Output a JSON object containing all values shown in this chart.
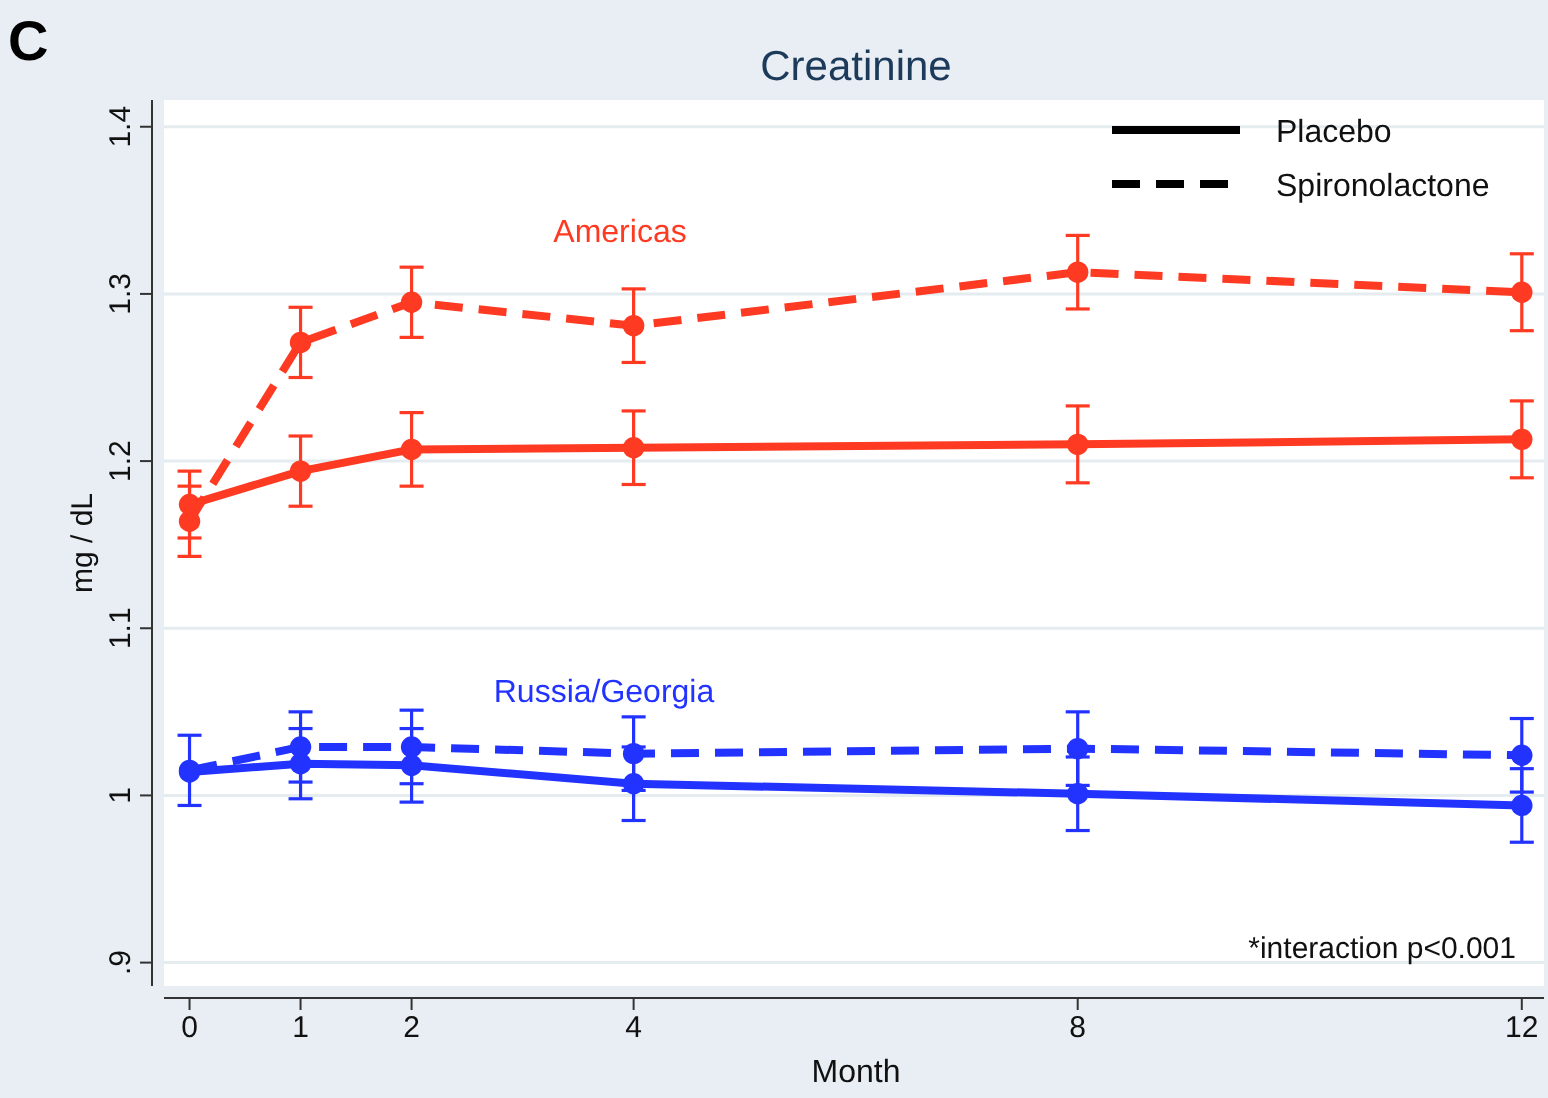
{
  "chart_data": {
    "type": "line",
    "title": "Creatinine",
    "xlabel": "Month",
    "ylabel": "mg / dL",
    "x": [
      0,
      1,
      2,
      4,
      8,
      12
    ],
    "xlim": [
      -0.23,
      12.2
    ],
    "xticks": [
      0,
      1,
      2,
      4,
      8,
      12
    ],
    "ylim": [
      0.886,
      1.416
    ],
    "yticks": [
      {
        "value": 0.9,
        "label": ".9"
      },
      1,
      1.1,
      1.2,
      1.3,
      1.4
    ],
    "grid": "y",
    "marker": "circle",
    "tick_labels": [
      "x",
      "y"
    ],
    "series": [
      {
        "color": "#fe3a22",
        "line_style": "solid",
        "values": [
          1.174,
          1.194,
          1.207,
          1.208,
          1.21,
          1.213
        ],
        "errors": [
          0.02,
          0.021,
          0.022,
          0.022,
          0.023,
          0.023
        ]
      },
      {
        "color": "#fe3a22",
        "line_style": "dashed",
        "values": [
          1.164,
          1.271,
          1.295,
          1.281,
          1.313,
          1.301
        ],
        "errors": [
          0.021,
          0.021,
          0.021,
          0.022,
          0.022,
          0.023
        ]
      },
      {
        "color": "#2233ff",
        "line_style": "solid",
        "values": [
          1.014,
          1.019,
          1.018,
          1.007,
          1.001,
          0.994
        ],
        "errors": [
          null,
          0.021,
          0.022,
          0.022,
          0.022,
          0.022
        ]
      },
      {
        "color": "#2233ff",
        "line_style": "dashed",
        "values": [
          1.015,
          1.029,
          1.029,
          1.025,
          1.028,
          1.024
        ],
        "errors": [
          0.021,
          0.021,
          0.022,
          0.022,
          0.022,
          0.022
        ]
      }
    ],
    "annotations": [
      "C",
      "Americas",
      "Russia/Georgia",
      "Placebo",
      "Spironolactone",
      "*interaction p<0.001"
    ]
  }
}
